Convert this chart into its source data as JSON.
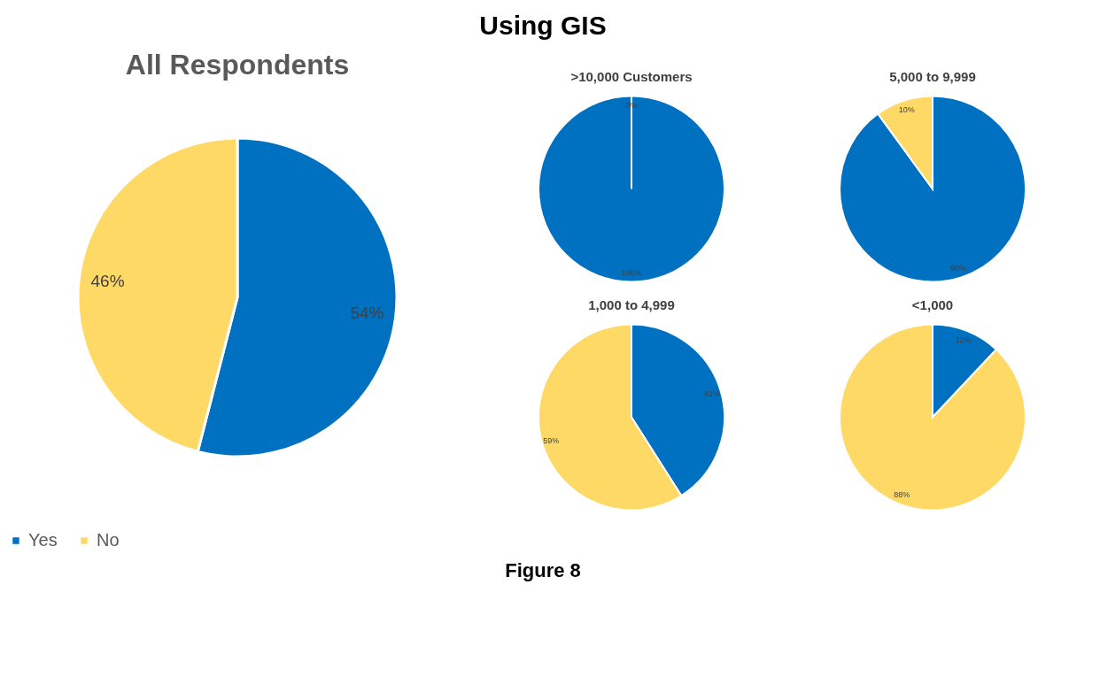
{
  "chart_data": [
    {
      "type": "pie",
      "title": "All Respondents",
      "categories": [
        "Yes",
        "No"
      ],
      "values": [
        54,
        46
      ],
      "value_labels": [
        "54%",
        "46%"
      ],
      "colors": [
        "#0070c0",
        "#ffd966"
      ],
      "legend": "bottom",
      "annotations": [
        "Using GIS",
        "Figure 8"
      ]
    },
    {
      "type": "pie",
      "title": ">10,000 Customers",
      "categories": [
        null,
        null
      ],
      "values": [
        100,
        0
      ],
      "value_labels": [
        "100%",
        "0%"
      ],
      "colors": [
        "#0070c0",
        "#ffd966"
      ]
    },
    {
      "type": "pie",
      "title": "5,000 to 9,999",
      "categories": [
        null,
        null
      ],
      "values": [
        90,
        10
      ],
      "value_labels": [
        "90%",
        "10%"
      ],
      "colors": [
        "#0070c0",
        "#ffd966"
      ]
    },
    {
      "type": "pie",
      "title": "1,000 to 4,999",
      "categories": [
        null,
        null
      ],
      "values": [
        41,
        59
      ],
      "value_labels": [
        "41%",
        "59%"
      ],
      "colors": [
        "#0070c0",
        "#ffd966"
      ]
    },
    {
      "type": "pie",
      "title": "<1,000",
      "categories": [
        null,
        null
      ],
      "values": [
        12,
        88
      ],
      "value_labels": [
        "12%",
        "88%"
      ],
      "colors": [
        "#0070c0",
        "#ffd966"
      ]
    }
  ]
}
